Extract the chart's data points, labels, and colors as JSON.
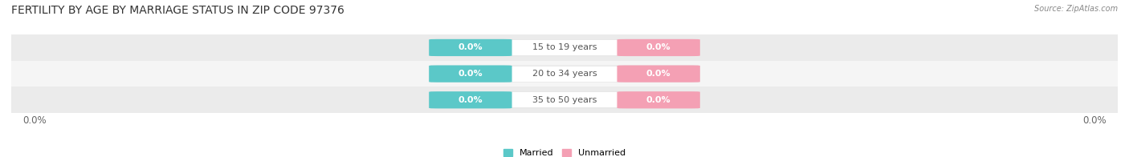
{
  "title": "FERTILITY BY AGE BY MARRIAGE STATUS IN ZIP CODE 97376",
  "source": "Source: ZipAtlas.com",
  "age_groups": [
    "15 to 19 years",
    "20 to 34 years",
    "35 to 50 years"
  ],
  "married_values": [
    0.0,
    0.0,
    0.0
  ],
  "unmarried_values": [
    0.0,
    0.0,
    0.0
  ],
  "married_color": "#5BC8C8",
  "unmarried_color": "#F4A0B4",
  "bar_bg_color": "#E8E8E8",
  "bar_center_color": "#FFFFFF",
  "xlim_left": "0.0%",
  "xlim_right": "0.0%",
  "legend_married": "Married",
  "legend_unmarried": "Unmarried",
  "title_fontsize": 10,
  "label_fontsize": 8,
  "tick_fontsize": 8.5,
  "background_color": "#F2F2F2",
  "figure_bg_color": "#FFFFFF",
  "row_bg_colors": [
    "#EBEBEB",
    "#F5F5F5",
    "#EBEBEB"
  ]
}
